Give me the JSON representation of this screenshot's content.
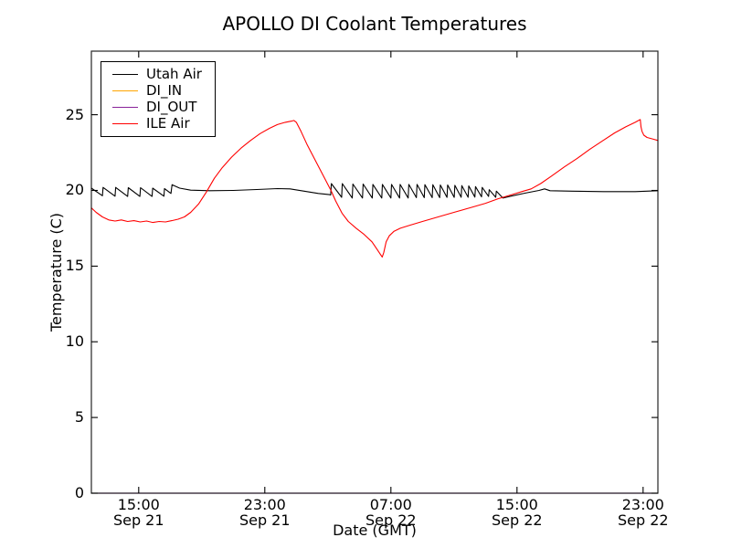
{
  "chart_data": {
    "type": "line",
    "title": "APOLLO DI Coolant Temperatures",
    "xlabel": "Date (GMT)",
    "ylabel": "Temperature (C)",
    "grid": false,
    "x_unit": "hours elapsed since Sep 21 12:00 GMT (axis left edge)",
    "xlim": [
      0,
      35.94
    ],
    "ylim": [
      0,
      29.2
    ],
    "y_ticks": [
      0,
      5,
      10,
      15,
      20,
      25
    ],
    "x_ticks": [
      {
        "hours": 3,
        "time": "15:00",
        "date": "Sep 21"
      },
      {
        "hours": 11,
        "time": "23:00",
        "date": "Sep 21"
      },
      {
        "hours": 19,
        "time": "07:00",
        "date": "Sep 22"
      },
      {
        "hours": 27,
        "time": "15:00",
        "date": "Sep 22"
      },
      {
        "hours": 35,
        "time": "23:00",
        "date": "Sep 22"
      }
    ],
    "legend": {
      "position": "upper left",
      "entries": [
        {
          "label": "Utah Air",
          "color": "#000000"
        },
        {
          "label": "DI_IN",
          "color": "#ffa500"
        },
        {
          "label": "DI_OUT",
          "color": "#882299"
        },
        {
          "label": "ILE Air",
          "color": "#ff0000"
        }
      ]
    },
    "series": [
      {
        "name": "Utah Air",
        "color": "#000000",
        "points": [
          [
            0,
            20.15
          ],
          [
            0.7,
            19.65
          ],
          [
            0.74,
            20.2
          ],
          [
            1.5,
            19.62
          ],
          [
            1.54,
            20.2
          ],
          [
            2.3,
            19.6
          ],
          [
            2.34,
            20.18
          ],
          [
            3.08,
            19.6
          ],
          [
            3.12,
            20.18
          ],
          [
            3.85,
            19.6
          ],
          [
            3.89,
            20.15
          ],
          [
            4.6,
            19.62
          ],
          [
            4.64,
            20.12
          ],
          [
            5.05,
            19.8
          ],
          [
            5.12,
            20.38
          ],
          [
            5.6,
            20.15
          ],
          [
            6.3,
            20.02
          ],
          [
            7.5,
            19.98
          ],
          [
            9,
            20
          ],
          [
            10.5,
            20.06
          ],
          [
            11.8,
            20.12
          ],
          [
            12.6,
            20.1
          ],
          [
            13.5,
            19.95
          ],
          [
            14.4,
            19.8
          ],
          [
            15.1,
            19.72
          ],
          [
            15.18,
            19.7
          ],
          [
            15.22,
            20.45
          ],
          [
            15.88,
            19.55
          ],
          [
            15.92,
            20.45
          ],
          [
            16.55,
            19.5
          ],
          [
            16.59,
            20.42
          ],
          [
            17.2,
            19.5
          ],
          [
            17.24,
            20.42
          ],
          [
            17.82,
            19.5
          ],
          [
            17.86,
            20.4
          ],
          [
            18.42,
            19.5
          ],
          [
            18.46,
            20.4
          ],
          [
            19,
            19.5
          ],
          [
            19.04,
            20.4
          ],
          [
            19.55,
            19.5
          ],
          [
            19.59,
            20.4
          ],
          [
            20.1,
            19.5
          ],
          [
            20.14,
            20.4
          ],
          [
            20.62,
            19.52
          ],
          [
            20.66,
            20.4
          ],
          [
            21.12,
            19.52
          ],
          [
            21.16,
            20.38
          ],
          [
            21.62,
            19.52
          ],
          [
            21.66,
            20.38
          ],
          [
            22.1,
            19.52
          ],
          [
            22.14,
            20.36
          ],
          [
            22.56,
            19.54
          ],
          [
            22.6,
            20.36
          ],
          [
            23.02,
            19.54
          ],
          [
            23.06,
            20.34
          ],
          [
            23.46,
            19.55
          ],
          [
            23.5,
            20.32
          ],
          [
            23.9,
            19.55
          ],
          [
            23.94,
            20.3
          ],
          [
            24.33,
            19.56
          ],
          [
            24.37,
            20.25
          ],
          [
            24.75,
            19.58
          ],
          [
            24.79,
            20.2
          ],
          [
            25.2,
            19.6
          ],
          [
            25.24,
            20.05
          ],
          [
            25.65,
            19.55
          ],
          [
            25.69,
            19.95
          ],
          [
            26.1,
            19.5
          ],
          [
            26.6,
            19.62
          ],
          [
            27.5,
            19.82
          ],
          [
            28.4,
            20
          ],
          [
            28.75,
            20.1
          ],
          [
            29.1,
            19.98
          ],
          [
            30.5,
            19.95
          ],
          [
            32.5,
            19.92
          ],
          [
            34.5,
            19.92
          ],
          [
            35.94,
            19.98
          ]
        ]
      },
      {
        "name": "DI_IN",
        "color": "#ffa500",
        "points": [
          [
            0,
            0
          ],
          [
            35.94,
            0
          ]
        ]
      },
      {
        "name": "DI_OUT",
        "color": "#882299",
        "points": [
          [
            0,
            0
          ],
          [
            35.94,
            0
          ]
        ]
      },
      {
        "name": "ILE Air",
        "color": "#ff0000",
        "points": [
          [
            0,
            18.85
          ],
          [
            0.3,
            18.55
          ],
          [
            0.7,
            18.25
          ],
          [
            1.1,
            18.05
          ],
          [
            1.5,
            17.98
          ],
          [
            1.9,
            18.05
          ],
          [
            2.3,
            17.95
          ],
          [
            2.7,
            18
          ],
          [
            3.1,
            17.92
          ],
          [
            3.5,
            17.98
          ],
          [
            3.9,
            17.88
          ],
          [
            4.3,
            17.95
          ],
          [
            4.7,
            17.92
          ],
          [
            5.1,
            18
          ],
          [
            5.5,
            18.1
          ],
          [
            5.9,
            18.25
          ],
          [
            6.3,
            18.55
          ],
          [
            6.8,
            19.1
          ],
          [
            7.3,
            19.9
          ],
          [
            7.8,
            20.8
          ],
          [
            8.3,
            21.5
          ],
          [
            8.9,
            22.2
          ],
          [
            9.5,
            22.8
          ],
          [
            10.1,
            23.3
          ],
          [
            10.7,
            23.75
          ],
          [
            11.3,
            24.1
          ],
          [
            11.8,
            24.35
          ],
          [
            12.3,
            24.5
          ],
          [
            12.7,
            24.58
          ],
          [
            12.85,
            24.62
          ],
          [
            13,
            24.5
          ],
          [
            13.3,
            23.9
          ],
          [
            13.7,
            23
          ],
          [
            14.1,
            22.2
          ],
          [
            14.5,
            21.4
          ],
          [
            14.9,
            20.6
          ],
          [
            15.2,
            20
          ],
          [
            15.5,
            19.3
          ],
          [
            15.9,
            18.5
          ],
          [
            16.3,
            17.95
          ],
          [
            16.8,
            17.5
          ],
          [
            17.3,
            17.1
          ],
          [
            17.8,
            16.6
          ],
          [
            18.1,
            16.15
          ],
          [
            18.35,
            15.75
          ],
          [
            18.45,
            15.6
          ],
          [
            18.55,
            15.9
          ],
          [
            18.7,
            16.6
          ],
          [
            18.9,
            17
          ],
          [
            19.2,
            17.3
          ],
          [
            19.6,
            17.5
          ],
          [
            20.2,
            17.7
          ],
          [
            21,
            17.95
          ],
          [
            22,
            18.25
          ],
          [
            23,
            18.55
          ],
          [
            24,
            18.85
          ],
          [
            25,
            19.15
          ],
          [
            25.8,
            19.45
          ],
          [
            26.6,
            19.7
          ],
          [
            27.4,
            19.95
          ],
          [
            27.9,
            20.1
          ],
          [
            28.5,
            20.45
          ],
          [
            29.2,
            20.95
          ],
          [
            30,
            21.55
          ],
          [
            30.8,
            22.1
          ],
          [
            31.6,
            22.7
          ],
          [
            32.4,
            23.25
          ],
          [
            33.2,
            23.8
          ],
          [
            33.9,
            24.2
          ],
          [
            34.5,
            24.5
          ],
          [
            34.82,
            24.68
          ],
          [
            34.87,
            24.2
          ],
          [
            34.93,
            23.9
          ],
          [
            35.05,
            23.65
          ],
          [
            35.25,
            23.5
          ],
          [
            35.6,
            23.4
          ],
          [
            35.94,
            23.3
          ]
        ]
      }
    ]
  }
}
